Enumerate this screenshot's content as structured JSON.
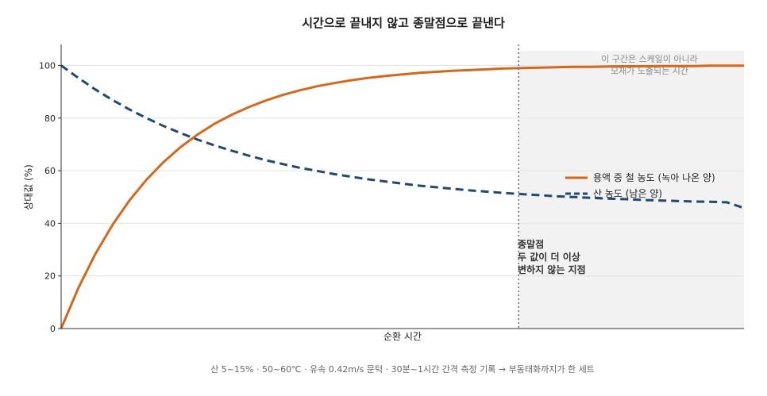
{
  "chart_data": {
    "type": "line",
    "title": "시간으로 끝내지 않고 종말점으로 끝낸다",
    "xlabel": "순환 시간",
    "ylabel": "상대값 (%)",
    "xlim": [
      0,
      10
    ],
    "ylim": [
      0,
      108
    ],
    "yticks": [
      "0",
      "20",
      "40",
      "60",
      "80",
      "100"
    ],
    "grid": "y",
    "legend_position": "center-right",
    "endpoint_x": 6.7,
    "series": [
      {
        "name": "용액 중 철 농도 (녹아 나온 양)",
        "color": "#d4681d",
        "style": "solid",
        "x": [
          0,
          0.25,
          0.5,
          0.75,
          1,
          1.25,
          1.5,
          1.75,
          2,
          2.25,
          2.5,
          2.75,
          3,
          3.25,
          3.5,
          3.75,
          4,
          4.25,
          4.5,
          4.75,
          5,
          5.25,
          5.5,
          5.75,
          6,
          6.25,
          6.5,
          6.75,
          7,
          7.25,
          7.5,
          7.75,
          8,
          8.25,
          8.5,
          8.75,
          9,
          9.25,
          9.5,
          9.75,
          10
        ],
        "values": [
          0,
          15.3,
          28.3,
          39.3,
          48.7,
          56.6,
          63.3,
          69.0,
          73.8,
          77.9,
          81.3,
          84.2,
          86.7,
          88.8,
          90.6,
          92.1,
          93.3,
          94.4,
          95.3,
          96.0,
          96.6,
          97.2,
          97.6,
          98.0,
          98.3,
          98.6,
          98.9,
          99.0,
          99.2,
          99.3,
          99.5,
          99.5,
          99.6,
          99.7,
          99.7,
          99.8,
          99.8,
          99.8,
          99.9,
          99.9,
          99.9
        ]
      },
      {
        "name": "산 농도 (남은 양)",
        "color": "#1f4a72",
        "style": "dashed",
        "x": [
          0,
          0.25,
          0.5,
          0.75,
          1,
          1.25,
          1.5,
          1.75,
          2,
          2.25,
          2.5,
          2.75,
          3,
          3.25,
          3.5,
          3.75,
          4,
          4.25,
          4.5,
          4.75,
          5,
          5.25,
          5.5,
          5.75,
          6,
          6.25,
          6.5,
          6.75,
          7,
          7.25,
          7.5,
          7.75,
          8,
          8.25,
          8.5,
          8.75,
          9,
          9.25,
          9.5,
          9.75,
          10
        ],
        "values": [
          100,
          95.3,
          90.9,
          86.9,
          83.3,
          80.0,
          77.0,
          74.3,
          71.8,
          69.6,
          67.6,
          65.7,
          64.0,
          62.5,
          61.1,
          59.9,
          58.7,
          57.7,
          56.7,
          55.9,
          55.1,
          54.3,
          53.7,
          53.1,
          52.5,
          52.0,
          51.5,
          51.1,
          50.7,
          50.3,
          50.0,
          49.7,
          49.4,
          49.2,
          48.9,
          48.7,
          48.5,
          48.3,
          48.2,
          48.0,
          45.8
        ]
      }
    ],
    "annotations": {
      "region_note": [
        "이 구간은 스케일이 아니라",
        "모재가 노출되는 시간"
      ],
      "endpoint_note": [
        "종말점",
        "두 값이 더 이상",
        "변하지 않는 지점"
      ]
    },
    "footer": "산 5~15% · 50~60℃ · 유속 0.42m/s 문턱 · 30분~1시간 간격 측정 기록 → 부동태화까지가 한 세트"
  }
}
